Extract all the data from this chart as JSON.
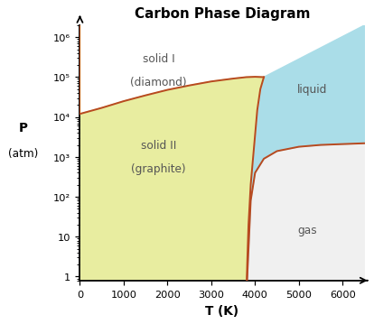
{
  "title": "Carbon Phase Diagram",
  "xlabel": "T (K)",
  "ylabel_line1": "P",
  "ylabel_line2": "(atm)",
  "xlim": [
    0,
    6500
  ],
  "ylim_min": 0.8,
  "ylim_max": 2000000,
  "xticks": [
    0,
    1000,
    2000,
    3000,
    4000,
    5000,
    6000
  ],
  "ytick_vals": [
    1,
    10,
    100,
    1000,
    10000,
    100000,
    1000000
  ],
  "ytick_labels": [
    "1",
    "10",
    "10²",
    "10³",
    "10⁴",
    "10⁵",
    "10⁶"
  ],
  "color_solid": "#e8eda0",
  "color_liquid": "#aadde8",
  "color_gas": "#f0f0f0",
  "color_boundary": "#b84a20",
  "label_diamond_text": "solid I",
  "label_diamond_sub": "(diamond)",
  "label_graphite_text": "solid II",
  "label_graphite_sub": "(graphite)",
  "label_liquid": "liquid",
  "label_gas": "gas",
  "label_diamond_T": 1800,
  "label_diamond_P": 300000,
  "label_graphite_T": 1800,
  "label_graphite_P": 2000,
  "label_liquid_T": 5300,
  "label_liquid_P": 50000,
  "label_gas_T": 5200,
  "label_gas_P": 15,
  "T_dg": [
    0,
    500,
    1000,
    1500,
    2000,
    2500,
    3000,
    3500,
    3800,
    4000,
    4100,
    4200
  ],
  "P_dg": [
    12000,
    17000,
    25000,
    35000,
    48000,
    62000,
    78000,
    92000,
    100000,
    102000,
    101000,
    100000
  ],
  "T_gl": [
    3800,
    3820,
    3850,
    3900,
    3980,
    4050,
    4120,
    4200
  ],
  "P_gl": [
    0.3,
    2,
    20,
    200,
    2000,
    15000,
    50000,
    100000
  ],
  "T_lg": [
    3800,
    3900,
    4000,
    4200,
    4500,
    5000,
    5500,
    6000,
    6500
  ],
  "P_lg": [
    0.3,
    80,
    400,
    900,
    1400,
    1800,
    2000,
    2100,
    2200
  ],
  "upper_triple_T": 4200,
  "upper_triple_P": 100000,
  "lower_triple_T": 3800,
  "lower_triple_P": 0.3,
  "figwidth": 3.8,
  "figheight": 3.3,
  "fig_dpi": 109,
  "title_fontsize": 10,
  "label_fontsize": 8,
  "tick_fontsize": 7.5,
  "axis_label_fontsize": 9
}
